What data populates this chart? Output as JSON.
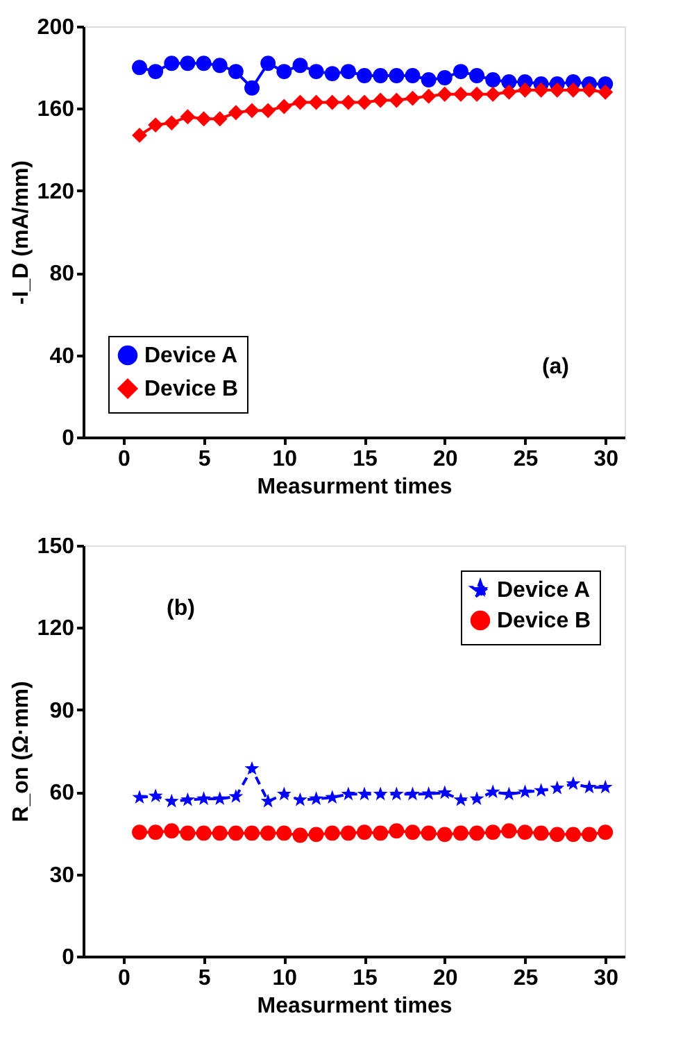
{
  "chart_data": [
    {
      "type": "line",
      "xlabel": "Measurment times",
      "ylabel": "-I_D (mA/mm)",
      "annotations": [
        "(a)"
      ],
      "x": [
        1,
        2,
        3,
        4,
        5,
        6,
        7,
        8,
        9,
        10,
        11,
        12,
        13,
        14,
        15,
        16,
        17,
        18,
        19,
        20,
        21,
        22,
        23,
        24,
        25,
        26,
        27,
        28,
        29,
        30
      ],
      "series": [
        {
          "name": "Device A",
          "color": "#0000ff",
          "marker": "circle",
          "line_style": "solid",
          "values": [
            180,
            178,
            182,
            182,
            182,
            181,
            178,
            170,
            182,
            178,
            181,
            178,
            177,
            178,
            176,
            176,
            176,
            176,
            174,
            175,
            178,
            176,
            174,
            173,
            173,
            172,
            172,
            173,
            172,
            172
          ]
        },
        {
          "name": "Device B",
          "color": "#ff0000",
          "marker": "diamond",
          "line_style": "solid",
          "values": [
            147,
            152,
            153,
            156,
            155,
            155,
            158,
            159,
            159,
            161,
            163,
            163,
            163,
            163,
            163,
            164,
            164,
            165,
            166,
            167,
            167,
            167,
            167,
            168,
            169,
            169,
            169,
            169,
            169,
            168
          ]
        }
      ],
      "xlim": [
        -2.5,
        31.2
      ],
      "xticks": [
        0,
        5,
        10,
        15,
        20,
        25,
        30
      ],
      "ylim": [
        0,
        200
      ],
      "yticks": [
        0,
        40,
        80,
        120,
        160,
        200
      ],
      "grid": false,
      "legend": "bottom left"
    },
    {
      "type": "line",
      "xlabel": "Measurment times",
      "ylabel": "R_on (Ω·mm)",
      "annotations": [
        "(b)"
      ],
      "x": [
        1,
        2,
        3,
        4,
        5,
        6,
        7,
        8,
        9,
        10,
        11,
        12,
        13,
        14,
        15,
        16,
        17,
        18,
        19,
        20,
        21,
        22,
        23,
        24,
        25,
        26,
        27,
        28,
        29,
        30
      ],
      "series": [
        {
          "name": "Device A",
          "color": "#0000ff",
          "marker": "star",
          "line_style": "dashed",
          "values": [
            58,
            58.5,
            56.6,
            57.1,
            57.5,
            57.5,
            58.3,
            68.5,
            56.6,
            59.2,
            57.1,
            57.5,
            58,
            59.2,
            59.2,
            59.2,
            59.2,
            59.2,
            59.3,
            59.7,
            57.1,
            57.5,
            60,
            59.2,
            60,
            60.5,
            61.4,
            63,
            61.7,
            61.7
          ]
        },
        {
          "name": "Device B",
          "color": "#ff0000",
          "marker": "circle",
          "line_style": "solid",
          "values": [
            45.3,
            45.3,
            45.8,
            45,
            45,
            45,
            45,
            45,
            45,
            45,
            44.2,
            44.5,
            45,
            45,
            45.3,
            45,
            45.8,
            45.3,
            45,
            44.5,
            45,
            45,
            45.3,
            45.8,
            45.3,
            45,
            44.5,
            44.5,
            44.5,
            45.3
          ]
        }
      ],
      "xlim": [
        -2.5,
        31.2
      ],
      "xticks": [
        0,
        5,
        10,
        15,
        20,
        25,
        30
      ],
      "ylim": [
        0,
        150
      ],
      "yticks": [
        0,
        30,
        60,
        90,
        120,
        150
      ],
      "grid": false,
      "legend": "top right"
    }
  ]
}
